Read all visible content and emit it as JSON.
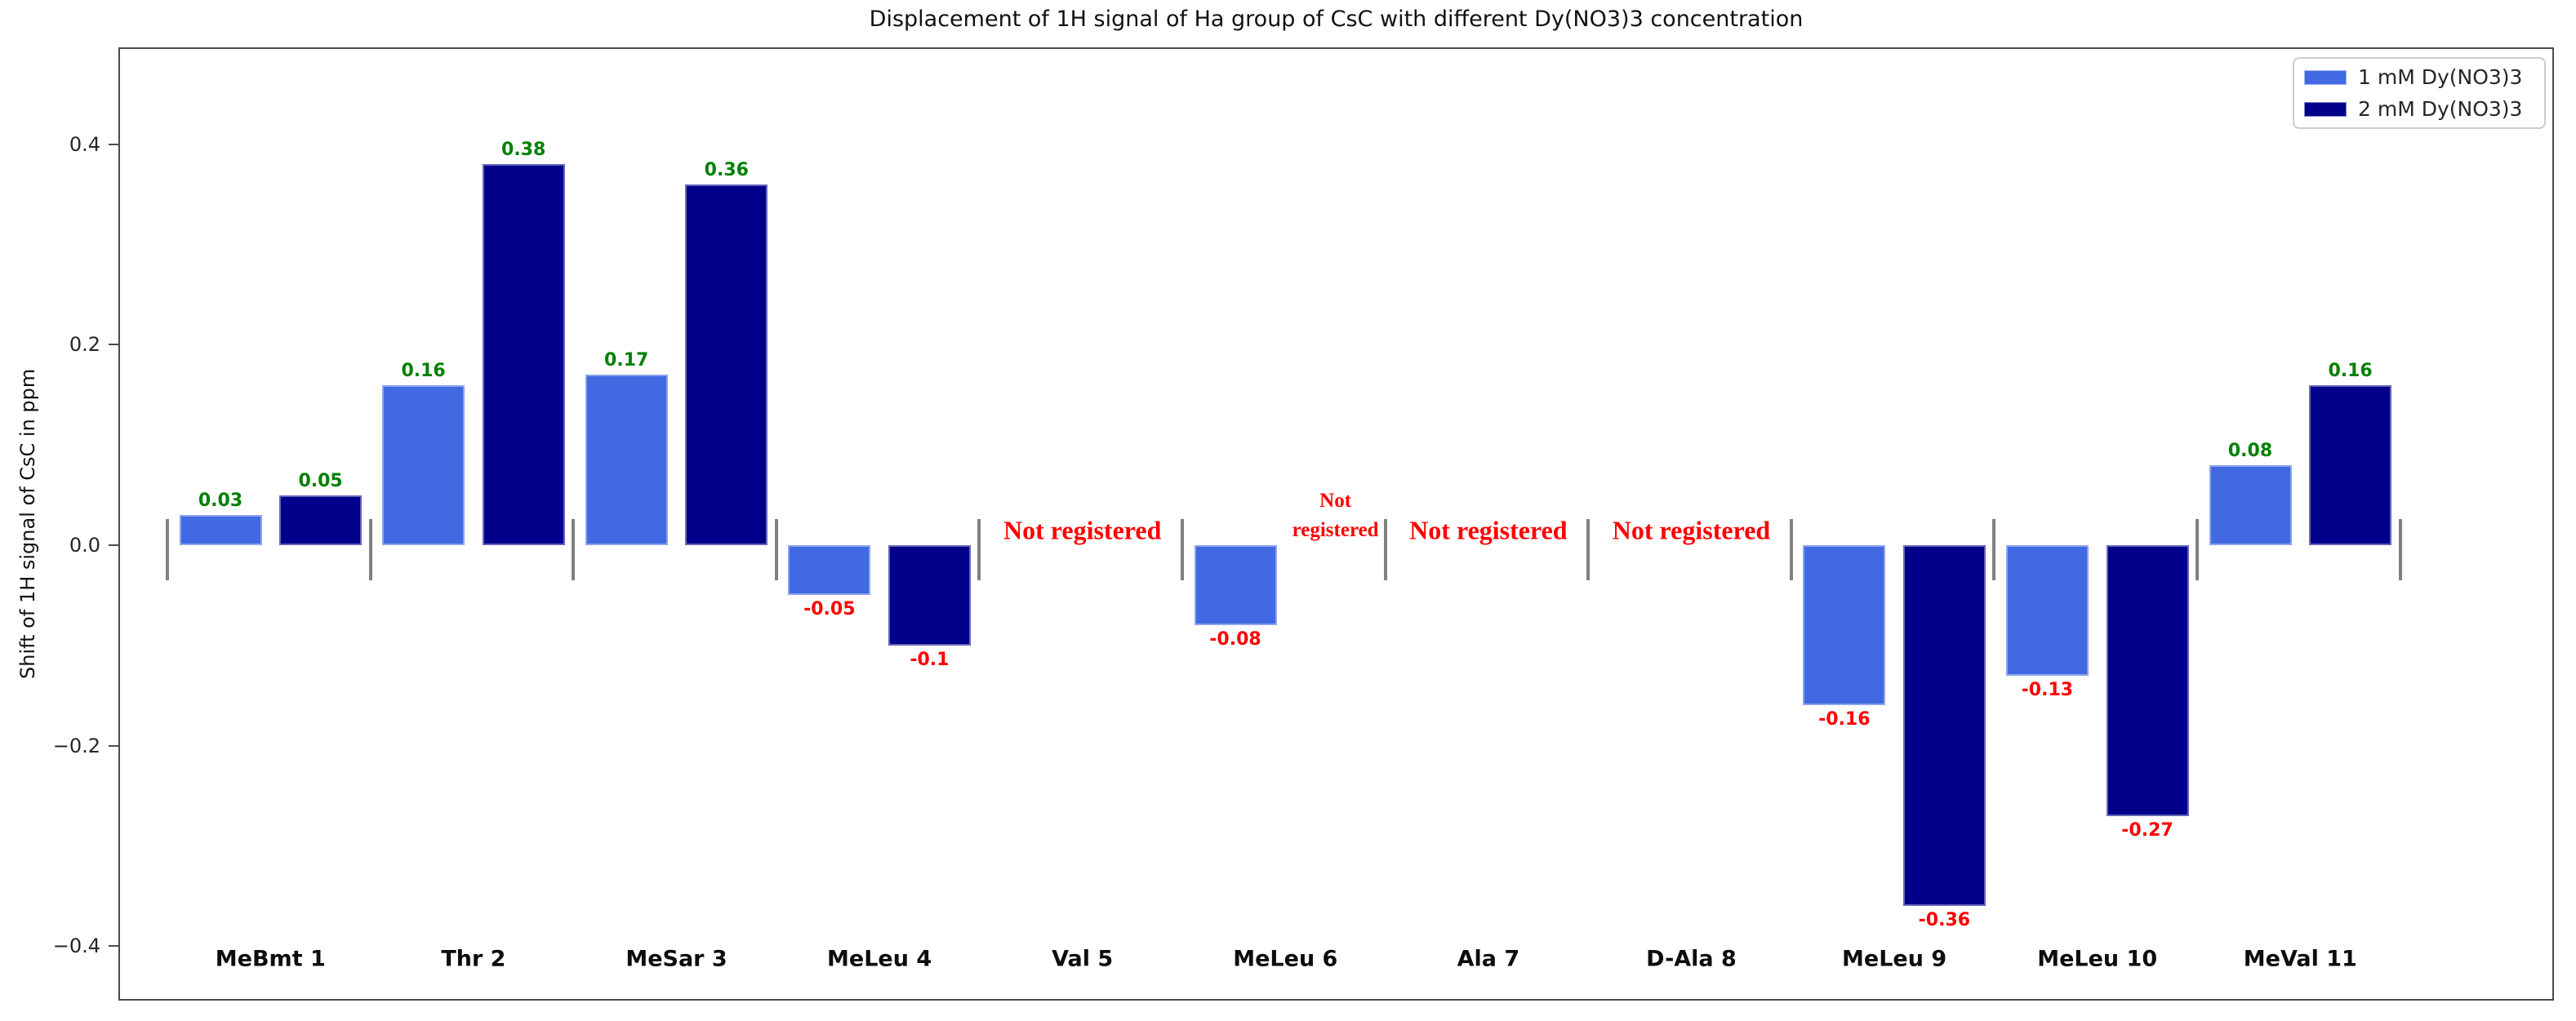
{
  "figure": {
    "title": "Displacement of 1H signal of Ha group of CsC with different Dy(NO3)3 concentration"
  },
  "chart_data": {
    "type": "bar",
    "title": "Displacement of 1H signal of Ha group of CsC with different Dy(NO3)3 concentration",
    "xlabel": "",
    "ylabel": "Shift of 1H signal of CsC in ppm",
    "categories": [
      "MeBmt 1",
      "Thr 2",
      "MeSar 3",
      "MeLeu 4",
      "Val 5",
      "MeLeu 6",
      "Ala 7",
      "D-Ala 8",
      "MeLeu 9",
      "MeLeu 10",
      "MeVal 11"
    ],
    "series": [
      {
        "name": "1 mM Dy(NO3)3",
        "color": "#4169e1",
        "values": [
          0.03,
          0.16,
          0.17,
          -0.05,
          null,
          -0.08,
          null,
          null,
          -0.16,
          -0.13,
          0.08
        ]
      },
      {
        "name": "2 mM Dy(NO3)3",
        "color": "#00008b",
        "values": [
          0.05,
          0.38,
          0.36,
          -0.1,
          null,
          null,
          null,
          null,
          -0.36,
          -0.27,
          0.16
        ]
      }
    ],
    "annotations": [
      {
        "category": "Val 5",
        "scope": "group",
        "text": "Not registered",
        "two_line": false
      },
      {
        "category": "MeLeu 6",
        "scope": "series2",
        "text": "Not registered",
        "two_line": true
      },
      {
        "category": "Ala 7",
        "scope": "group",
        "text": "Not registered",
        "two_line": false
      },
      {
        "category": "D-Ala 8",
        "scope": "group",
        "text": "Not registered",
        "two_line": false
      }
    ],
    "yticks": [
      {
        "value": 0.4,
        "label": "0.4"
      },
      {
        "value": 0.2,
        "label": "0.2"
      },
      {
        "value": 0.0,
        "label": "0.0"
      },
      {
        "value": -0.2,
        "label": "−0.2"
      },
      {
        "value": -0.4,
        "label": "−0.4"
      }
    ],
    "ylim": [
      -0.4544,
      0.4967
    ],
    "grid": false,
    "legend_position": "upper right",
    "colors": {
      "positive_label": "#008000",
      "negative_label": "#ff0000",
      "annotation": "#ff0000",
      "separator": "#808080"
    }
  }
}
